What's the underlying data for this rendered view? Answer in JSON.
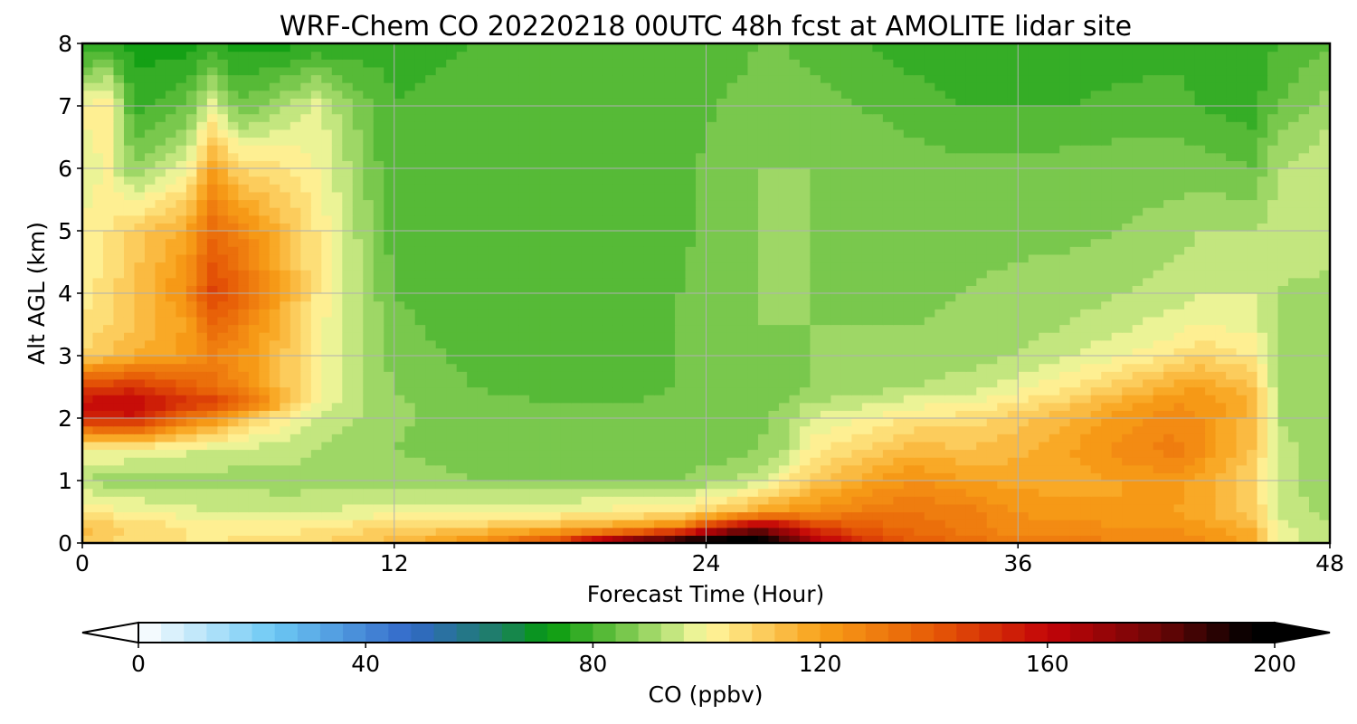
{
  "chart_data": {
    "type": "heatmap",
    "title": "WRF-Chem CO  20220218 00UTC 48h fcst at AMOLITE lidar site",
    "xlabel": "Forecast Time (Hour)",
    "ylabel": "Alt AGL (km)",
    "xlim": [
      0,
      48
    ],
    "ylim": [
      0,
      8
    ],
    "xticks": [
      0,
      12,
      24,
      36,
      48
    ],
    "yticks": [
      0,
      1,
      2,
      3,
      4,
      5,
      6,
      7,
      8
    ],
    "grid": true,
    "x_hours": [
      0,
      1,
      2,
      4,
      5,
      6,
      8,
      9,
      10,
      12,
      15,
      18,
      21,
      23,
      24,
      25,
      26,
      27,
      28,
      30,
      32,
      34,
      36,
      38,
      40,
      42,
      43,
      45,
      46,
      48
    ],
    "y_km": [
      0,
      0.25,
      0.5,
      1,
      1.5,
      2,
      2.25,
      2.5,
      3,
      3.5,
      4,
      5,
      6,
      7,
      8
    ],
    "values_ppbv": [
      [
        110,
        108,
        106,
        104,
        104,
        105,
        106,
        108,
        110,
        115,
        125,
        145,
        185,
        205,
        205,
        210,
        205,
        190,
        170,
        150,
        140,
        135,
        130,
        130,
        128,
        128,
        125,
        120,
        100,
        92
      ],
      [
        115,
        110,
        108,
        104,
        102,
        102,
        102,
        104,
        106,
        108,
        110,
        115,
        122,
        130,
        150,
        165,
        175,
        165,
        150,
        140,
        135,
        130,
        125,
        125,
        125,
        125,
        122,
        115,
        98,
        92
      ],
      [
        105,
        102,
        100,
        98,
        96,
        96,
        95,
        96,
        97,
        98,
        99,
        100,
        102,
        104,
        108,
        112,
        118,
        122,
        125,
        130,
        132,
        130,
        124,
        122,
        120,
        120,
        118,
        110,
        96,
        90
      ],
      [
        92,
        90,
        90,
        90,
        90,
        90,
        90,
        90,
        90,
        90,
        88,
        88,
        88,
        88,
        90,
        92,
        95,
        102,
        110,
        118,
        125,
        120,
        118,
        118,
        120,
        122,
        118,
        108,
        94,
        88
      ],
      [
        100,
        100,
        99,
        97,
        96,
        95,
        94,
        92,
        90,
        88,
        86,
        86,
        86,
        86,
        86,
        86,
        88,
        92,
        102,
        108,
        115,
        112,
        115,
        120,
        126,
        130,
        125,
        112,
        94,
        88
      ],
      [
        150,
        152,
        155,
        130,
        125,
        112,
        100,
        96,
        93,
        89,
        85,
        84,
        84,
        85,
        85,
        85,
        86,
        90,
        96,
        100,
        104,
        106,
        110,
        115,
        122,
        126,
        124,
        114,
        92,
        88
      ],
      [
        158,
        160,
        162,
        150,
        148,
        140,
        112,
        100,
        95,
        89,
        85,
        84,
        84,
        85,
        85,
        85,
        86,
        88,
        92,
        95,
        98,
        100,
        104,
        110,
        118,
        124,
        123,
        116,
        92,
        88
      ],
      [
        146,
        148,
        150,
        140,
        135,
        128,
        110,
        100,
        95,
        88,
        84,
        83,
        83,
        84,
        85,
        85,
        86,
        87,
        88,
        90,
        92,
        94,
        98,
        104,
        110,
        118,
        120,
        112,
        92,
        88
      ],
      [
        108,
        112,
        116,
        122,
        128,
        124,
        110,
        100,
        95,
        86,
        83,
        82,
        82,
        84,
        85,
        85,
        86,
        87,
        88,
        88,
        89,
        90,
        92,
        96,
        100,
        104,
        108,
        104,
        91,
        88
      ],
      [
        105,
        108,
        112,
        120,
        135,
        130,
        112,
        102,
        96,
        85,
        82,
        81,
        82,
        84,
        86,
        87,
        88,
        88,
        88,
        88,
        88,
        89,
        90,
        92,
        95,
        98,
        100,
        98,
        92,
        88
      ],
      [
        102,
        106,
        112,
        125,
        145,
        138,
        115,
        104,
        97,
        84,
        81,
        80,
        81,
        84,
        86,
        87,
        88,
        88,
        88,
        87,
        87,
        88,
        89,
        90,
        92,
        94,
        96,
        96,
        92,
        90
      ],
      [
        100,
        104,
        110,
        118,
        135,
        128,
        112,
        104,
        96,
        82,
        80,
        80,
        81,
        83,
        85,
        87,
        88,
        88,
        88,
        87,
        86,
        87,
        87,
        87,
        88,
        90,
        92,
        92,
        94,
        96
      ],
      [
        98,
        100,
        88,
        98,
        120,
        108,
        104,
        100,
        94,
        80,
        80,
        80,
        82,
        83,
        85,
        87,
        88,
        88,
        88,
        87,
        86,
        85,
        85,
        86,
        86,
        86,
        86,
        84,
        92,
        96
      ],
      [
        100,
        104,
        78,
        84,
        98,
        84,
        92,
        98,
        90,
        80,
        82,
        84,
        82,
        80,
        83,
        85,
        86,
        87,
        86,
        84,
        82,
        80,
        80,
        80,
        82,
        82,
        80,
        78,
        84,
        90
      ],
      [
        75,
        78,
        74,
        74,
        76,
        74,
        75,
        76,
        77,
        78,
        80,
        83,
        82,
        80,
        80,
        82,
        84,
        84,
        82,
        80,
        78,
        76,
        76,
        76,
        77,
        78,
        78,
        78,
        80,
        84
      ]
    ],
    "colorbar": {
      "label": "CO  (ppbv)",
      "range": [
        0,
        200
      ],
      "step": 4,
      "ticks": [
        0,
        40,
        80,
        120,
        160,
        200
      ],
      "extend": "both",
      "color_stops": [
        {
          "v": 0,
          "c": "#ffffff"
        },
        {
          "v": 24,
          "c": "#6cc8f4"
        },
        {
          "v": 48,
          "c": "#3268c8"
        },
        {
          "v": 64,
          "c": "#1c8060"
        },
        {
          "v": 72,
          "c": "#049a0c"
        },
        {
          "v": 84,
          "c": "#66c040"
        },
        {
          "v": 96,
          "c": "#d6ee8c"
        },
        {
          "v": 100,
          "c": "#fff8a0"
        },
        {
          "v": 120,
          "c": "#f8a018"
        },
        {
          "v": 140,
          "c": "#e65a06"
        },
        {
          "v": 160,
          "c": "#c40408"
        },
        {
          "v": 180,
          "c": "#6a0606"
        },
        {
          "v": 196,
          "c": "#000000"
        }
      ]
    }
  }
}
